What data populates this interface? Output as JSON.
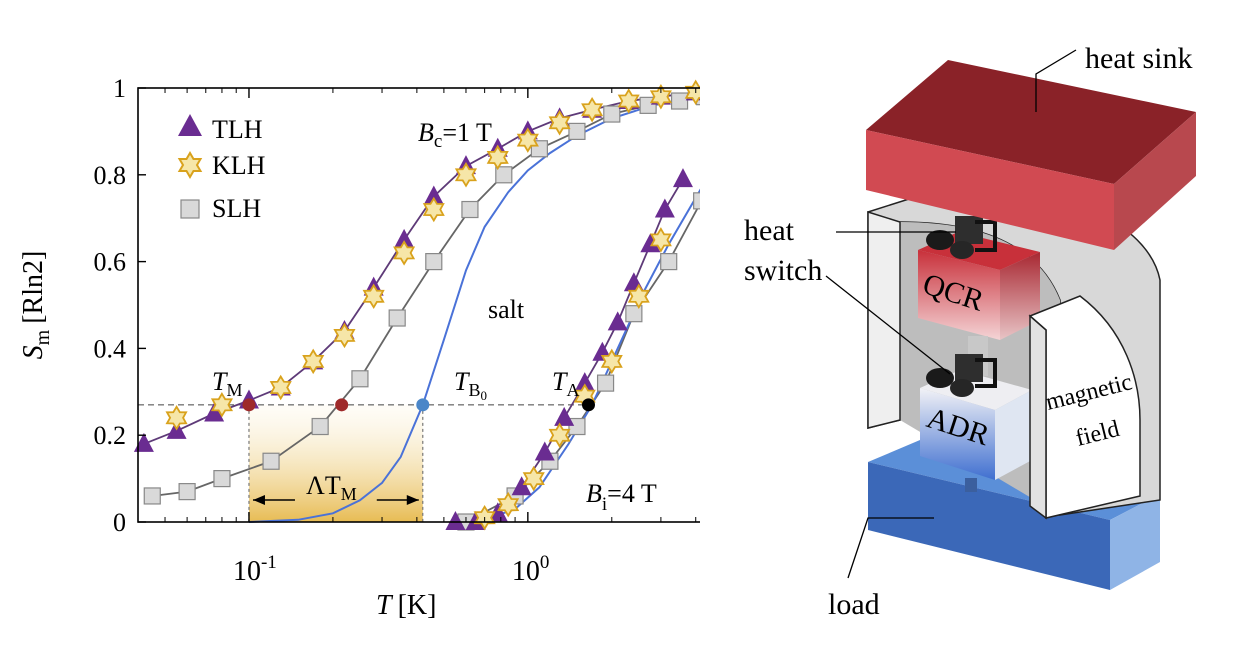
{
  "chart_data": {
    "type": "scatter",
    "xlabel_var": "T",
    "xlabel_unit": "[K]",
    "ylabel_var": "S",
    "ylabel_sub": "m",
    "ylabel_unit": "[Rln2]",
    "x_scale": "log",
    "xlim": [
      0.04,
      4.5
    ],
    "ylim": [
      0,
      1
    ],
    "x_ticks": [
      {
        "value": 0.1,
        "base": "10",
        "exp": "-1"
      },
      {
        "value": 1.0,
        "base": "10",
        "exp": "0"
      }
    ],
    "y_ticks": [
      {
        "value": 0,
        "label": "0"
      },
      {
        "value": 0.2,
        "label": "0.2"
      },
      {
        "value": 0.4,
        "label": "0.4"
      },
      {
        "value": 0.6,
        "label": "0.6"
      },
      {
        "value": 0.8,
        "label": "0.8"
      },
      {
        "value": 1,
        "label": "1"
      }
    ],
    "legend_position": "top-left",
    "colors": {
      "tlh": "#6a2c91",
      "tlh_line": "#5e3a78",
      "klh_fill": "#f6e6a8",
      "klh_edge": "#d9a21c",
      "slh_fill": "#d9d9d9",
      "slh_edge": "#888888",
      "slh_line": "#666666",
      "salt": "#4a72d8",
      "tm_dot": "#9e2a2a",
      "tb0_dot": "#4a86c8",
      "ta_dot": "#000000",
      "shade": "#e6b84a",
      "guide": "#777777"
    },
    "series": [
      {
        "name": "TLH",
        "marker": "triangle",
        "groups": [
          {
            "x": [
              0.042,
              0.055,
              0.075,
              0.1,
              0.13,
              0.17,
              0.22,
              0.28,
              0.36,
              0.46,
              0.6,
              0.78,
              1.0,
              1.3,
              1.7,
              2.3,
              3.0,
              4.0
            ],
            "y": [
              0.18,
              0.21,
              0.25,
              0.28,
              0.31,
              0.37,
              0.44,
              0.54,
              0.65,
              0.75,
              0.82,
              0.86,
              0.9,
              0.93,
              0.95,
              0.97,
              0.98,
              0.99
            ]
          },
          {
            "x": [
              0.55,
              0.65,
              0.78,
              0.95,
              1.15,
              1.35,
              1.6,
              1.85,
              2.1,
              2.4,
              2.75,
              3.1,
              3.6
            ],
            "y": [
              0.0,
              0.0,
              0.02,
              0.08,
              0.16,
              0.24,
              0.32,
              0.39,
              0.46,
              0.55,
              0.64,
              0.72,
              0.79
            ]
          }
        ]
      },
      {
        "name": "KLH",
        "marker": "star",
        "groups": [
          {
            "x": [
              0.055,
              0.08,
              0.13,
              0.17,
              0.22,
              0.28,
              0.36,
              0.46,
              0.6,
              0.78,
              1.0,
              1.3,
              1.7,
              2.3,
              3.0,
              4.0
            ],
            "y": [
              0.24,
              0.27,
              0.31,
              0.37,
              0.43,
              0.52,
              0.62,
              0.72,
              0.8,
              0.84,
              0.88,
              0.92,
              0.95,
              0.97,
              0.98,
              0.99
            ]
          },
          {
            "x": [
              0.7,
              0.85,
              1.05,
              1.3,
              1.6,
              2.0,
              2.5,
              3.0
            ],
            "y": [
              0.01,
              0.04,
              0.1,
              0.2,
              0.29,
              0.37,
              0.52,
              0.65
            ]
          }
        ]
      },
      {
        "name": "SLH",
        "marker": "square",
        "groups": [
          {
            "x": [
              0.045,
              0.06,
              0.08,
              0.12,
              0.18,
              0.25,
              0.34,
              0.46,
              0.62,
              0.82,
              1.1,
              1.5,
              2.0,
              2.7,
              3.5,
              4.3
            ],
            "y": [
              0.06,
              0.07,
              0.1,
              0.14,
              0.22,
              0.33,
              0.47,
              0.6,
              0.72,
              0.8,
              0.86,
              0.9,
              0.94,
              0.96,
              0.97,
              0.98
            ]
          },
          {
            "x": [
              0.6,
              0.9,
              1.2,
              1.5,
              1.9,
              2.4,
              3.2,
              4.2
            ],
            "y": [
              0.0,
              0.06,
              0.14,
              0.22,
              0.32,
              0.48,
              0.6,
              0.74
            ]
          }
        ]
      },
      {
        "name": "salt",
        "marker": "line",
        "x": [
          0.1,
          0.15,
          0.2,
          0.25,
          0.3,
          0.35,
          0.42,
          0.5,
          0.6,
          0.7,
          0.85,
          1.0,
          1.2,
          1.5,
          2.0,
          2.8,
          4.2
        ],
        "y": [
          0.0,
          0.005,
          0.02,
          0.05,
          0.09,
          0.15,
          0.27,
          0.42,
          0.58,
          0.68,
          0.76,
          0.81,
          0.85,
          0.89,
          0.93,
          0.96,
          0.98
        ]
      },
      {
        "name": "salt-low",
        "marker": "line",
        "x": [
          0.55,
          0.7,
          0.9,
          1.1,
          1.4,
          1.7,
          2.1,
          2.6,
          3.2,
          4.2
        ],
        "y": [
          0.0,
          0.005,
          0.03,
          0.08,
          0.18,
          0.27,
          0.4,
          0.53,
          0.64,
          0.77
        ]
      }
    ],
    "annotations": {
      "bc": {
        "var": "B",
        "sub": "c",
        "value": "=1 T"
      },
      "bi": {
        "var": "B",
        "sub": "i",
        "value": "=4 T"
      },
      "salt": "salt",
      "tm": {
        "var": "T",
        "sub": "M"
      },
      "tb0": {
        "var": "T",
        "sub": "B",
        "subsub": "0"
      },
      "ta": {
        "var": "T",
        "sub": "A"
      },
      "dtm": {
        "var": "ΛT",
        "sub": "M"
      }
    },
    "guide_y": 0.27,
    "points": {
      "tm": 0.1,
      "tm2": 0.215,
      "tb0": 0.42,
      "ta": 1.65
    },
    "shade_range": [
      0.1,
      0.42
    ]
  },
  "schematic": {
    "heat_sink": "heat sink",
    "heat": "heat",
    "switch": "switch",
    "qcr": "QCR",
    "adr": "ADR",
    "magnetic": "magnetic",
    "field": "field",
    "load": "load"
  }
}
